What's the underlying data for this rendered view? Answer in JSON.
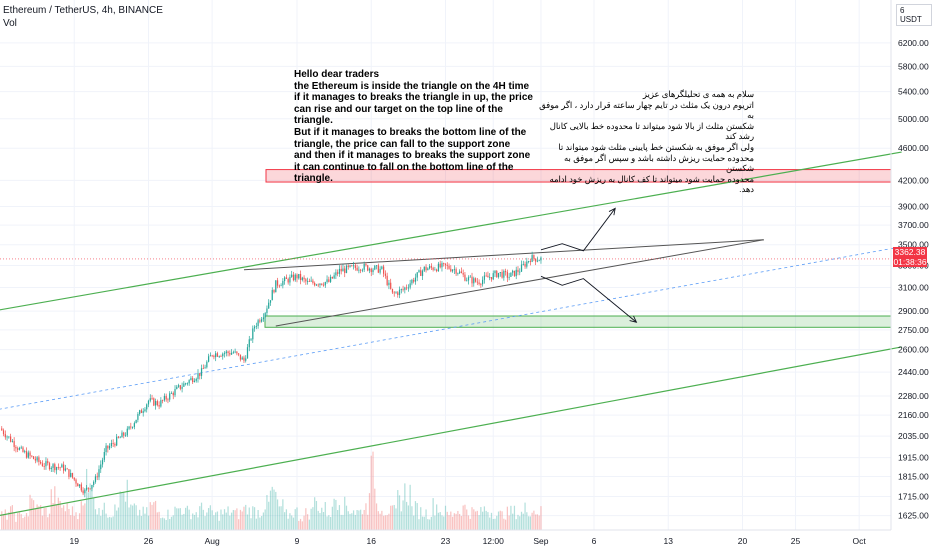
{
  "header": {
    "symbol_line": "Ethereum / TetherUS, 4h, BINANCE",
    "volume_label": "Vol"
  },
  "unit_badge": "6 USDT",
  "price_tag": {
    "price": "3362.38",
    "countdown": "01:38:36",
    "color": "#f23645"
  },
  "notes": {
    "english": "Hello dear traders\nthe Ethereum is inside the triangle on the 4H time\nif it manages to breaks the triangle in up, the price\ncan rise and our target on the top line of the triangle.\nBut if it manages to breaks the bottom line of the\ntriangle, the price can fall to the support zone\nand then if it manages to breaks the support zone\nit can continue to fall on the bottom line of the triangle.",
    "persian": "سلام به همه ی تحلیلگرهای عزیز\nاتریوم درون یک مثلث در تایم چهار ساعته قرار دارد ، اگر موفق به\nشکستن مثلث از بالا شود میتواند تا محدوده خط بالایی کانال رشد کند\nولی اگر موفق به شکستن خط پایینی مثلث شود میتواند تا\nمحدوده حمایت ریزش داشته باشد و سپس اگر موفق به شکستن\nمحدوده حمایت شود میتواند تا کف کانال به ریزش خود ادامه دهد."
  },
  "chart_data": {
    "type": "candlestick",
    "symbol": "Ethereum / TetherUS",
    "interval": "4h",
    "exchange": "BINANCE",
    "y_axis": {
      "scale": "log",
      "range": [
        1560,
        7000
      ],
      "ticks": [
        6200,
        5800,
        5400,
        5000,
        4600,
        4200,
        3900,
        3700,
        3500,
        3300,
        3100,
        2900,
        2750,
        2600,
        2440,
        2280,
        2160,
        2035,
        1915,
        1815,
        1715,
        1625
      ],
      "tick_labels": [
        "6200.00",
        "5800.00",
        "5400.00",
        "5000.00",
        "4600.00",
        "4200.00",
        "3900.00",
        "3700.00",
        "3500.00",
        "3300.00",
        "3100.00",
        "2900.00",
        "2750.00",
        "2600.00",
        "2440.00",
        "2280.00",
        "2160.00",
        "2035.00",
        "1915.00",
        "1815.00",
        "1715.00",
        "1625.00"
      ]
    },
    "x_axis": {
      "range": [
        "2021-07-12",
        "2021-10-04"
      ],
      "ticks": [
        {
          "date": "2021-07-19",
          "label": "19"
        },
        {
          "date": "2021-07-26",
          "label": "26"
        },
        {
          "date": "2021-08-01",
          "label": "Aug"
        },
        {
          "date": "2021-08-09",
          "label": "9"
        },
        {
          "date": "2021-08-16",
          "label": "16"
        },
        {
          "date": "2021-08-23",
          "label": "23"
        },
        {
          "date": "2021-08-27T12:00",
          "label": "12:00"
        },
        {
          "date": "2021-09-01",
          "label": "Sep"
        },
        {
          "date": "2021-09-06",
          "label": "6"
        },
        {
          "date": "2021-09-13",
          "label": "13"
        },
        {
          "date": "2021-09-20",
          "label": "20"
        },
        {
          "date": "2021-09-25",
          "label": "25"
        },
        {
          "date": "2021-10-01",
          "label": "Oct"
        }
      ]
    },
    "price_path": [
      [
        "2021-07-12",
        2080
      ],
      [
        "2021-07-14",
        1950
      ],
      [
        "2021-07-16",
        1880
      ],
      [
        "2021-07-18",
        1860
      ],
      [
        "2021-07-20",
        1740
      ],
      [
        "2021-07-21",
        1800
      ],
      [
        "2021-07-22",
        1960
      ],
      [
        "2021-07-24",
        2060
      ],
      [
        "2021-07-26",
        2250
      ],
      [
        "2021-07-27",
        2230
      ],
      [
        "2021-07-29",
        2340
      ],
      [
        "2021-07-31",
        2440
      ],
      [
        "2021-08-01",
        2570
      ],
      [
        "2021-08-03",
        2580
      ],
      [
        "2021-08-04",
        2520
      ],
      [
        "2021-08-05",
        2780
      ],
      [
        "2021-08-06",
        2900
      ],
      [
        "2021-08-07",
        3130
      ],
      [
        "2021-08-09",
        3200
      ],
      [
        "2021-08-10",
        3140
      ],
      [
        "2021-08-12",
        3150
      ],
      [
        "2021-08-13",
        3250
      ],
      [
        "2021-08-15",
        3290
      ],
      [
        "2021-08-17",
        3260
      ],
      [
        "2021-08-18",
        3040
      ],
      [
        "2021-08-19",
        3080
      ],
      [
        "2021-08-21",
        3270
      ],
      [
        "2021-08-23",
        3290
      ],
      [
        "2021-08-24",
        3260
      ],
      [
        "2021-08-25",
        3180
      ],
      [
        "2021-08-26",
        3150
      ],
      [
        "2021-08-27",
        3190
      ],
      [
        "2021-08-28",
        3230
      ],
      [
        "2021-08-29",
        3200
      ],
      [
        "2021-08-30",
        3260
      ],
      [
        "2021-08-31",
        3370
      ],
      [
        "2021-09-01",
        3362
      ]
    ],
    "volume_shape": [
      0.25,
      0.3,
      0.22,
      0.28,
      0.45,
      0.35,
      0.3,
      0.55,
      0.4,
      0.35,
      0.3,
      0.38,
      0.95,
      0.42,
      0.33,
      0.3,
      0.5,
      0.62,
      0.35,
      0.3,
      0.28,
      0.4,
      0.3,
      0.26,
      0.32,
      0.36,
      0.3,
      0.28,
      0.34,
      0.3,
      0.25,
      0.28,
      0.3,
      0.27,
      0.35,
      0.32,
      0.3,
      0.42,
      0.6,
      0.38
    ],
    "annotations": {
      "resistance_zone": {
        "low": 4180,
        "high": 4330,
        "color": "#f23645"
      },
      "support_zone": {
        "low": 2770,
        "high": 2860,
        "color": "#4caf50"
      },
      "channel_upper": [
        [
          "2021-07-08",
          2850
        ],
        [
          "2021-10-05",
          4550
        ]
      ],
      "channel_lower": [
        [
          "2021-07-08",
          1590
        ],
        [
          "2021-10-05",
          2620
        ]
      ],
      "triangle_upper": [
        [
          "2021-08-04",
          3260
        ],
        [
          "2021-09-22",
          3550
        ]
      ],
      "triangle_lower": [
        [
          "2021-08-07",
          2780
        ],
        [
          "2021-09-22",
          3550
        ]
      ],
      "dashed_midline": [
        [
          "2021-07-08",
          2150
        ],
        [
          "2021-10-05",
          3480
        ]
      ],
      "current_price_line": 3362,
      "bullish_path": [
        [
          "2021-09-01",
          3450
        ],
        [
          "2021-09-03",
          3510
        ],
        [
          "2021-09-05",
          3440
        ],
        [
          "2021-09-08",
          3880
        ]
      ],
      "bearish_path": [
        [
          "2021-09-01",
          3200
        ],
        [
          "2021-09-03",
          3120
        ],
        [
          "2021-09-05",
          3180
        ],
        [
          "2021-09-10",
          2810
        ]
      ]
    }
  }
}
